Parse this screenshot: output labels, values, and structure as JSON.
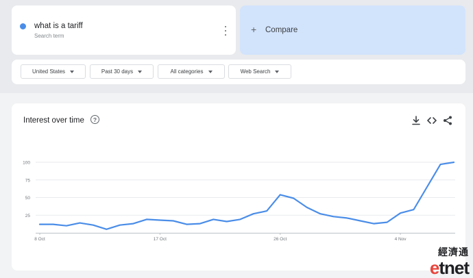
{
  "search_term": {
    "name": "what is a tariff",
    "type": "Search term",
    "color": "#4a8de8"
  },
  "compare": {
    "label": "Compare"
  },
  "filters": [
    {
      "label": "United States"
    },
    {
      "label": "Past 30 days"
    },
    {
      "label": "All categories"
    },
    {
      "label": "Web Search"
    }
  ],
  "panel": {
    "title": "Interest over time"
  },
  "icons": {
    "help": "help-icon",
    "download": "download-icon",
    "embed": "embed-code-icon",
    "share": "share-icon",
    "menu": "more-vert-icon",
    "plus": "plus-icon"
  },
  "chart_data": {
    "type": "line",
    "title": "Interest over time",
    "x": [
      "8 Oct",
      "9 Oct",
      "10 Oct",
      "11 Oct",
      "12 Oct",
      "13 Oct",
      "14 Oct",
      "15 Oct",
      "16 Oct",
      "17 Oct",
      "18 Oct",
      "19 Oct",
      "20 Oct",
      "21 Oct",
      "22 Oct",
      "23 Oct",
      "24 Oct",
      "25 Oct",
      "26 Oct",
      "27 Oct",
      "28 Oct",
      "29 Oct",
      "30 Oct",
      "31 Oct",
      "1 Nov",
      "2 Nov",
      "3 Nov",
      "4 Nov",
      "5 Nov",
      "6 Nov",
      "7 Nov",
      "8 Nov"
    ],
    "x_tick_labels": [
      "8 Oct",
      "17 Oct",
      "26 Oct",
      "4 Nov"
    ],
    "y_ticks": [
      100,
      75,
      50,
      25
    ],
    "ylim": [
      0,
      100
    ],
    "series": [
      {
        "values": [
          12,
          12,
          10,
          14,
          11,
          5,
          11,
          13,
          19,
          18,
          17,
          12,
          13,
          19,
          16,
          19,
          27,
          31,
          54,
          49,
          36,
          27,
          23,
          21,
          17,
          13,
          15,
          28,
          33,
          65,
          97,
          100
        ]
      }
    ],
    "line_color": "#4a8de8",
    "grid": true
  },
  "watermark": {
    "cn": "經濟通",
    "en": "etnet"
  }
}
